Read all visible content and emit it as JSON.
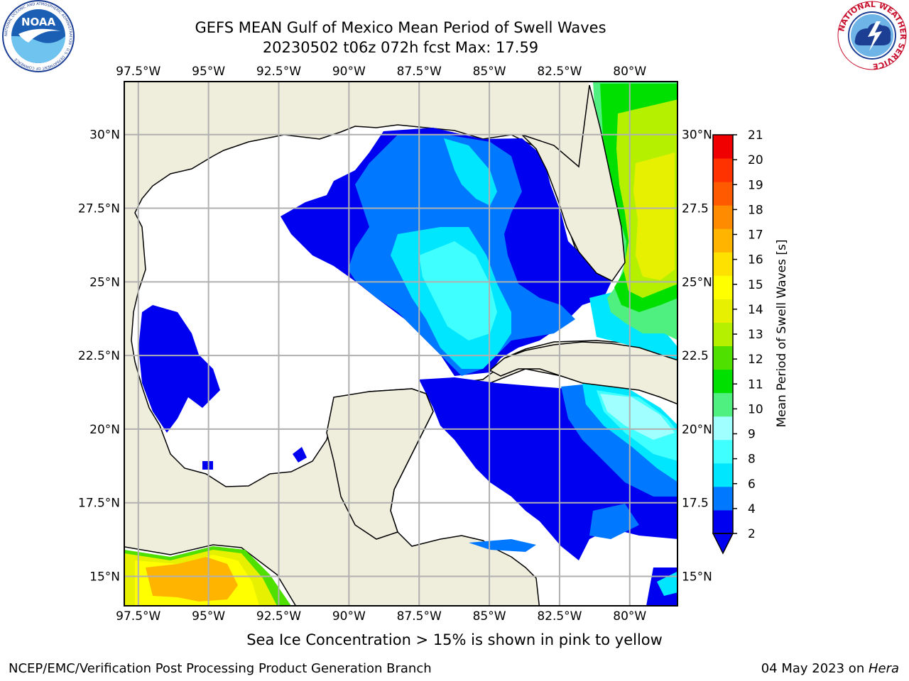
{
  "title": {
    "line1": "GEFS MEAN Gulf of Mexico Mean Period of Swell Waves",
    "line2": "20230502 t06z 072h fcst   Max: 17.59"
  },
  "note": "Sea Ice Concentration > 15% is shown in pink to yellow",
  "footer": {
    "left": "NCEP/EMC/Verification Post Processing Product Generation Branch",
    "right_date": "04 May 2023 on ",
    "right_host": "Hera"
  },
  "logos": {
    "left": "NOAA",
    "left_ring_text": "NATIONAL OCEANIC AND ATMOSPHERIC ADMINISTRATION · U.S. DEPARTMENT OF COMMERCE",
    "right_ring_text": "NATIONAL WEATHER SERVICE"
  },
  "map": {
    "lon_labels": [
      "97.5°W",
      "95°W",
      "92.5°W",
      "90°W",
      "87.5°W",
      "85°W",
      "82.5°W",
      "80°W"
    ],
    "lon_values": [
      -97.5,
      -95,
      -92.5,
      -90,
      -87.5,
      -85,
      -82.5,
      -80
    ],
    "lat_labels": [
      "30°N",
      "27.5°N",
      "25°N",
      "22.5°N",
      "20°N",
      "17.5°N",
      "15°N"
    ],
    "lat_labels_right": [
      "30°N",
      "27.5",
      "25°N",
      "22.5",
      "20°N",
      "17.5",
      "15°N"
    ],
    "lat_values": [
      30,
      27.5,
      25,
      22.5,
      20,
      17.5,
      15
    ],
    "lon_range": [
      -98,
      -78.3
    ],
    "lat_range": [
      14,
      31.8
    ],
    "grid": true,
    "land_color": "#efeddc",
    "grid_color": "#b0b0b0"
  },
  "colorbar": {
    "label": "Mean Period of Swell Waves [s]",
    "ticks": [
      "2",
      "4",
      "6",
      "8",
      "9",
      "10",
      "11",
      "12",
      "13",
      "14",
      "15",
      "16",
      "17",
      "18",
      "19",
      "20",
      "21"
    ],
    "colors": [
      "#0000f0",
      "#0078ff",
      "#00e6ff",
      "#40ffff",
      "#a0ffff",
      "#50f080",
      "#00e000",
      "#50e000",
      "#b4f000",
      "#e6f000",
      "#ffff00",
      "#ffe100",
      "#ffb400",
      "#ff8c00",
      "#ff5a00",
      "#ff3200",
      "#f00000"
    ],
    "extend": "min"
  }
}
